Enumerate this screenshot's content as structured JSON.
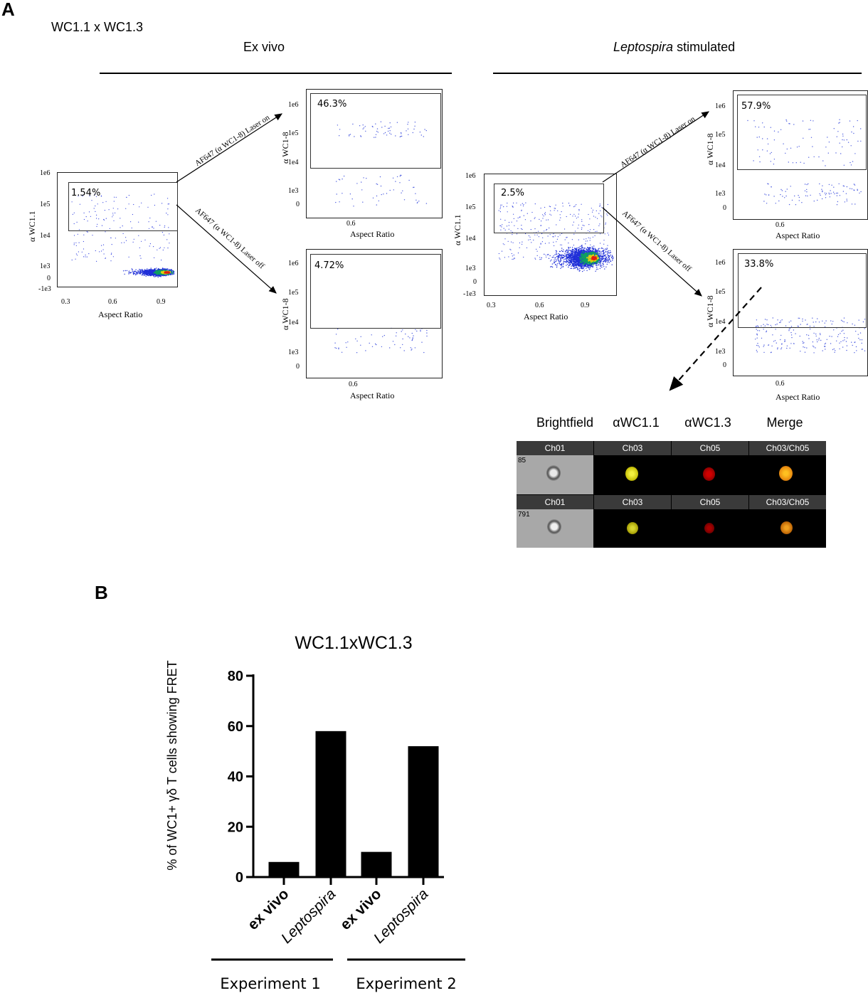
{
  "panel_a": {
    "label": "A",
    "combo": "WC1.1 x WC1.3",
    "ex_vivo_heading": "Ex vivo",
    "lepto_heading_italic": "Leptospira",
    "lepto_heading_rest": " stimulated",
    "main_plot": {
      "x_label": "Aspect Ratio",
      "y_label": "α WC1.1",
      "x_ticks": [
        "0.3",
        "0.6",
        "0.9"
      ],
      "y_ticks": [
        "1e6",
        "1e5",
        "1e4",
        "1e3",
        "0",
        "-1e3"
      ]
    },
    "sub_plot": {
      "x_label": "Aspect Ratio",
      "y_label": "α WC1-8",
      "x_ticks": [
        "0.6"
      ],
      "y_ticks": [
        "1e6",
        "1e5",
        "1e4",
        "1e3",
        "0"
      ]
    },
    "arrow_on": "AF647 (α WC1-8) Laser on",
    "arrow_off": "AF647 (α WC1-8) Laser off",
    "ex_vivo": {
      "gate_pct": "1.54%",
      "laser_on_pct": "46.3%",
      "laser_off_pct": "4.72%"
    },
    "leptospira": {
      "gate_pct": "2.5%",
      "laser_on_pct": "57.9%",
      "laser_off_pct": "33.8%"
    },
    "image_panel": {
      "columns": [
        "Brightfield",
        "αWC1.1",
        "αWC1.3",
        "Merge"
      ],
      "channels": [
        "Ch01",
        "Ch03",
        "Ch05",
        "Ch03/Ch05"
      ],
      "rows": [
        {
          "id": "85"
        },
        {
          "id": "791"
        }
      ],
      "colors": {
        "ch03": "#d6d20a",
        "ch05": "#b00000",
        "merge": "#f09010"
      }
    }
  },
  "panel_b": {
    "label": "B"
  },
  "chart_data": {
    "type": "bar",
    "title": "WC1.1xWC1.3",
    "ylabel": "% of WC1+ γδ T cells showing FRET",
    "ylim": [
      0,
      80
    ],
    "yticks": [
      "0",
      "20",
      "40",
      "60",
      "80"
    ],
    "categories": [
      "ex vivo",
      "Leptospira",
      "ex vivo",
      "Leptospira"
    ],
    "values": [
      6,
      58,
      10,
      52
    ],
    "groups": [
      "Experiment 1",
      "Experiment 2"
    ],
    "bar_color": "#000000"
  }
}
